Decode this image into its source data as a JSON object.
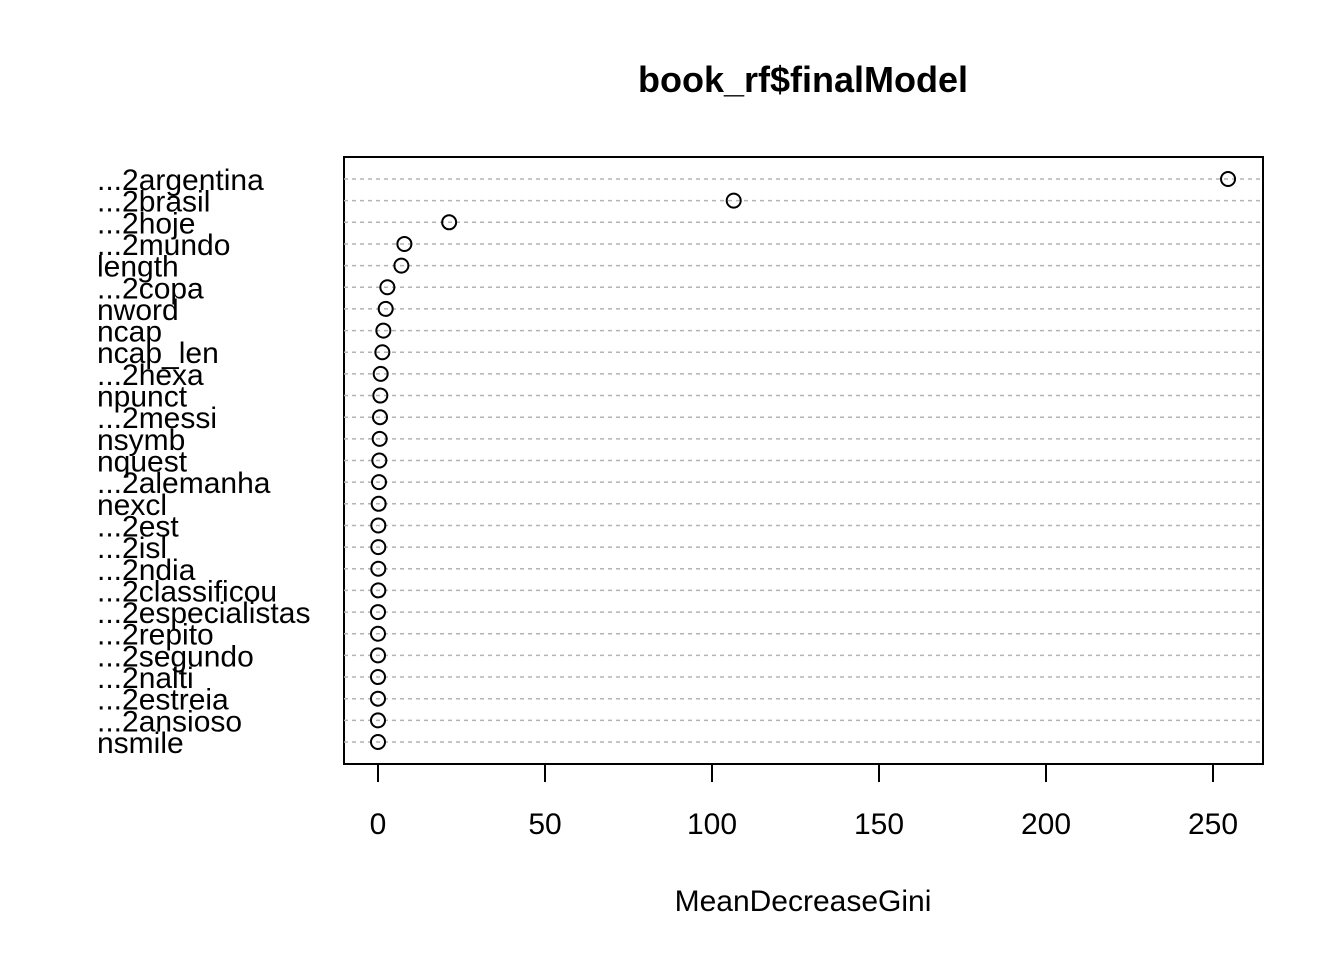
{
  "chart_data": {
    "type": "dotchart",
    "title": "book_rf$finalModel",
    "xlabel": "MeanDecreaseGini",
    "ylabel": "",
    "xlim": [
      -10,
      265
    ],
    "xticks": [
      0,
      50,
      100,
      150,
      200,
      250
    ],
    "grid": "dashed horizontal guides per category",
    "categories": [
      "...2argentina",
      "...2brasil",
      "...2hoje",
      "...2mundo",
      "length",
      "...2copa",
      "nword",
      "ncap",
      "ncap_len",
      "...2hexa",
      "npunct",
      "...2messi",
      "nsymb",
      "nquest",
      "...2alemanha",
      "nexcl",
      "...2est",
      "...2isl",
      "...2ndia",
      "...2classificou",
      "...2especialistas",
      "...2repito",
      "...2segundo",
      "...2nalti",
      "...2estreia",
      "...2ansioso",
      "nsmile"
    ],
    "values": [
      254.5,
      106.5,
      21.3,
      7.9,
      7.0,
      2.8,
      2.3,
      1.6,
      1.3,
      0.8,
      0.7,
      0.6,
      0.5,
      0.4,
      0.3,
      0.2,
      0.1,
      0.1,
      0.1,
      0.1,
      0.0,
      0.0,
      0.0,
      0.0,
      0.0,
      0.0,
      0.0
    ]
  }
}
